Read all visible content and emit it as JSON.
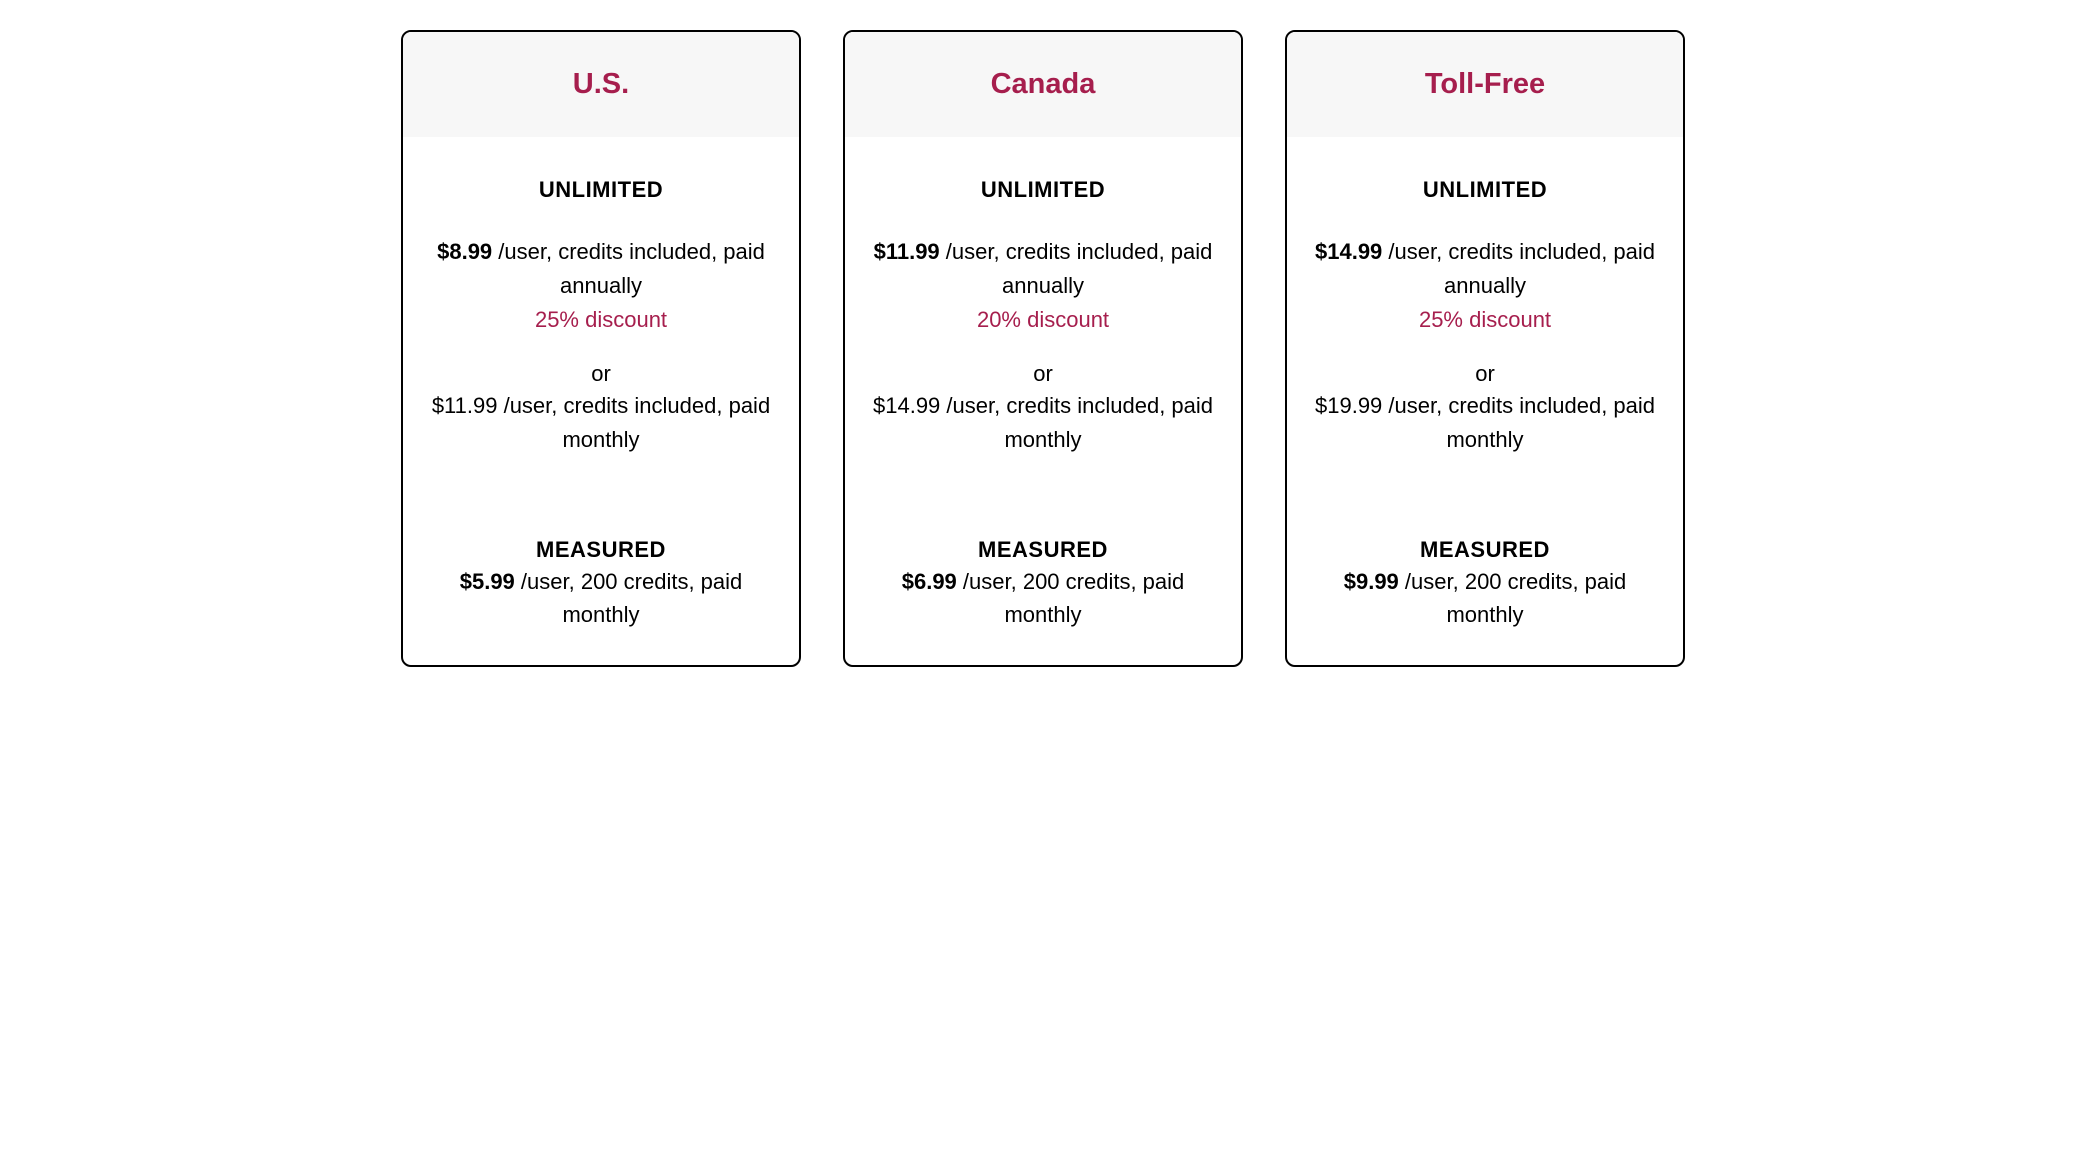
{
  "colors": {
    "accent": "#a61e4d",
    "border": "#000000",
    "header_bg": "#f7f7f7",
    "card_bg": "#ffffff",
    "text": "#000000"
  },
  "plans": [
    {
      "title": "U.S.",
      "unlimited_label": "UNLIMITED",
      "annual_price": "$8.99",
      "annual_suffix": " /user, credits included, paid annually",
      "discount": "25% discount",
      "or": "or",
      "monthly_price": "$11.99",
      "monthly_suffix": " /user, credits included, paid monthly",
      "measured_label": "MEASURED",
      "measured_price": "$5.99",
      "measured_suffix": " /user, 200 credits, paid monthly"
    },
    {
      "title": "Canada",
      "unlimited_label": "UNLIMITED",
      "annual_price": "$11.99",
      "annual_suffix": " /user, credits included, paid annually",
      "discount": "20% discount",
      "or": "or",
      "monthly_price": "$14.99",
      "monthly_suffix": " /user, credits included, paid monthly",
      "measured_label": "MEASURED",
      "measured_price": "$6.99",
      "measured_suffix": " /user, 200 credits, paid monthly"
    },
    {
      "title": "Toll-Free",
      "unlimited_label": "UNLIMITED",
      "annual_price": "$14.99",
      "annual_suffix": " /user, credits included, paid annually",
      "discount": "25% discount",
      "or": "or",
      "monthly_price": "$19.99",
      "monthly_suffix": " /user, credits included, paid monthly",
      "measured_label": "MEASURED",
      "measured_price": "$9.99",
      "measured_suffix": " /user, 200 credits, paid monthly"
    }
  ]
}
